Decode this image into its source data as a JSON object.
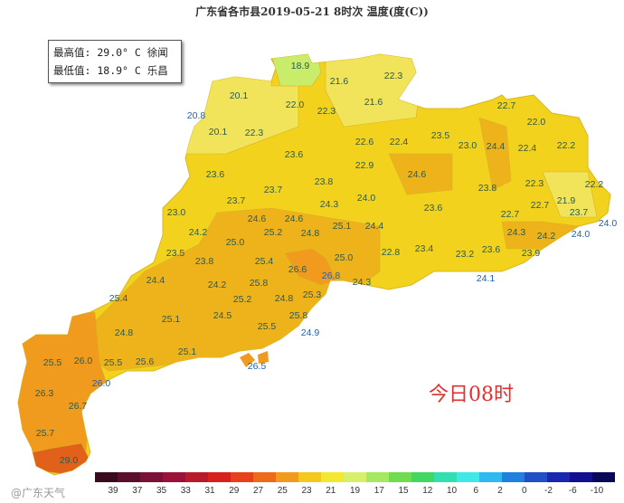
{
  "title": "广东省各市县2019-05-21 8时次 温度(度(C))",
  "info_box": {
    "max_line": "最高值: 29.0° C 徐闻",
    "min_line": "最低值: 18.9° C 乐昌"
  },
  "time_stamp": "今日08时",
  "watermark": "@广东天气",
  "colors": {
    "base": "#f2d21c",
    "light": "#f2e45a",
    "min_region": "#c9ec6a",
    "warm": "#eeb21a",
    "orange": "#f09a1e",
    "hot": "#e2611a",
    "label": "#2b5a4c",
    "coast_label": "#2060b0"
  },
  "station_values": [
    "18.9",
    "21.6",
    "22.3",
    "20.1",
    "21.6",
    "22.0",
    "22.3",
    "20.8",
    "20.1",
    "22.3",
    "22.6",
    "22.4",
    "23.5",
    "22.7",
    "22.0",
    "23.0",
    "24.4",
    "22.4",
    "22.2",
    "23.6",
    "22.9",
    "24.6",
    "23.6",
    "23.8",
    "23.8",
    "22.3",
    "22.2",
    "21.9",
    "24.0",
    "23.7",
    "23.7",
    "23.0",
    "24.3",
    "23.6",
    "22.7",
    "22.7",
    "23.7",
    "24.0",
    "24.6",
    "24.6",
    "24.2",
    "25.1",
    "24.4",
    "25.2",
    "24.8",
    "25.0",
    "24.3",
    "24.2",
    "24.0",
    "23.5",
    "23.8",
    "25.4",
    "26.6",
    "25.0",
    "26.8",
    "22.8",
    "23.4",
    "23.2",
    "23.6",
    "23.9",
    "24.1",
    "24.3",
    "24.4",
    "24.2",
    "25.8",
    "25.4",
    "25.2",
    "24.8",
    "25.3",
    "25.1",
    "24.5",
    "25.8",
    "25.5",
    "24.9",
    "24.8",
    "25.1",
    "25.5",
    "26.0",
    "25.5",
    "25.6",
    "26.5",
    "26.0",
    "26.3",
    "26.7",
    "25.7",
    "29.0"
  ],
  "legend": {
    "labels": [
      "39",
      "37",
      "35",
      "33",
      "31",
      "29",
      "27",
      "25",
      "23",
      "21",
      "19",
      "17",
      "15",
      "12",
      "10",
      "6",
      "2",
      "0",
      "-2",
      "-6",
      "-10"
    ],
    "colors": [
      "#3a0a1e",
      "#5a0f2e",
      "#7a1038",
      "#9a1238",
      "#b81a2a",
      "#d8201e",
      "#e8401a",
      "#ec6a18",
      "#f29a1c",
      "#f4c81c",
      "#f2e830",
      "#d6f06a",
      "#a6e860",
      "#70dc50",
      "#40d860",
      "#30e0b0",
      "#40e8e8",
      "#30b8f0",
      "#2080e0",
      "#2050c8",
      "#1828b0",
      "#101090",
      "#080858"
    ]
  }
}
